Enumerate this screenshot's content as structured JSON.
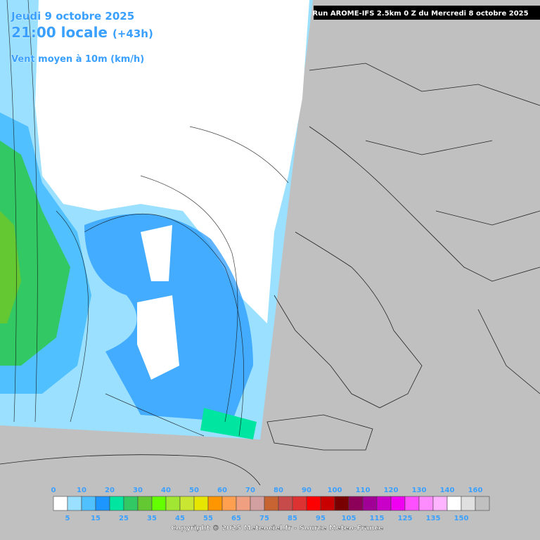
{
  "header": {
    "date": "Jeudi 9 octobre 2025",
    "time": "21:00 locale",
    "lead": "(+43h)",
    "parameter": "Vent moyen à 10m (km/h)",
    "run": "Run AROME-IFS 2.5km 0 Z du Mercredi 8 octobre 2025"
  },
  "legend": {
    "ticks": [
      0,
      5,
      10,
      15,
      20,
      25,
      30,
      35,
      40,
      45,
      50,
      55,
      60,
      65,
      70,
      75,
      80,
      85,
      90,
      95,
      100,
      105,
      110,
      115,
      120,
      125,
      130,
      135,
      140,
      150,
      160
    ],
    "colors": [
      "#ffffff",
      "#9be1ff",
      "#50c0ff",
      "#1e96ff",
      "#00e6a0",
      "#32c864",
      "#64c832",
      "#64ff00",
      "#a0e632",
      "#c8e632",
      "#e6e600",
      "#ff9600",
      "#ffa050",
      "#f0a080",
      "#d2a0a0",
      "#c86432",
      "#c84b4b",
      "#dc3232",
      "#ff0000",
      "#c80000",
      "#780000",
      "#8c005a",
      "#a00096",
      "#c800c8",
      "#f000f0",
      "#ff50ff",
      "#ff8cff",
      "#ffb4ff",
      "#ffffff",
      "#e0e0e0",
      "#c0c0c0"
    ]
  },
  "footer": {
    "copyright": "Copyright © 2025 Meteociel.fr - Source Meteo-France"
  }
}
